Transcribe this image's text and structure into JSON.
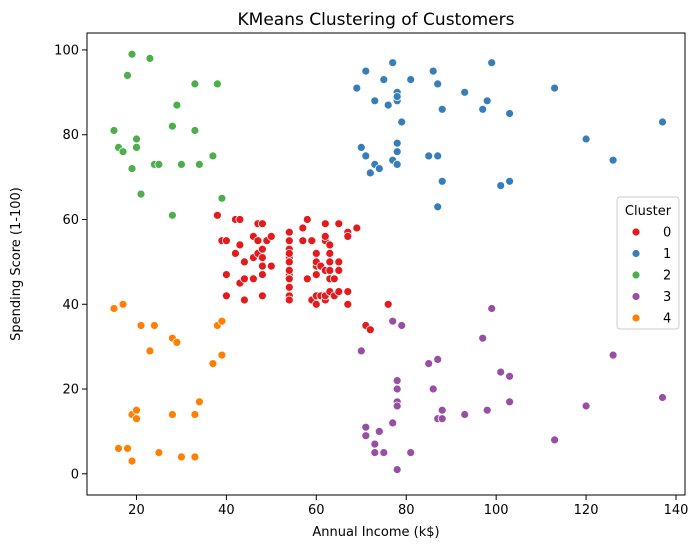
{
  "chart_data": {
    "type": "scatter",
    "title": "KMeans Clustering of Customers",
    "xlabel": "Annual Income (k$)",
    "ylabel": "Spending Score (1-100)",
    "xlim": [
      9,
      142
    ],
    "ylim": [
      -5,
      104
    ],
    "xticks": [
      20,
      40,
      60,
      80,
      100,
      120,
      140
    ],
    "yticks": [
      0,
      20,
      40,
      60,
      80,
      100
    ],
    "grid": false,
    "legend": {
      "title": "Cluster",
      "placement": "center-right"
    },
    "series": [
      {
        "name": "0",
        "color": "#e41a1c",
        "points": [
          [
            38,
            61
          ],
          [
            39,
            55
          ],
          [
            40,
            47
          ],
          [
            40,
            42
          ],
          [
            40,
            55
          ],
          [
            42,
            60
          ],
          [
            42,
            52
          ],
          [
            43,
            60
          ],
          [
            43,
            54
          ],
          [
            43,
            45
          ],
          [
            44,
            50
          ],
          [
            44,
            41
          ],
          [
            44,
            46
          ],
          [
            46,
            51
          ],
          [
            46,
            46
          ],
          [
            46,
            56
          ],
          [
            47,
            52
          ],
          [
            47,
            59
          ],
          [
            47,
            55
          ],
          [
            48,
            59
          ],
          [
            48,
            51
          ],
          [
            48,
            47
          ],
          [
            48,
            42
          ],
          [
            48,
            49
          ],
          [
            48,
            53
          ],
          [
            49,
            55
          ],
          [
            50,
            49
          ],
          [
            50,
            56
          ],
          [
            54,
            47
          ],
          [
            54,
            53
          ],
          [
            54,
            42
          ],
          [
            54,
            51
          ],
          [
            54,
            55
          ],
          [
            54,
            41
          ],
          [
            54,
            44
          ],
          [
            54,
            57
          ],
          [
            54,
            46
          ],
          [
            54,
            52
          ],
          [
            54,
            48
          ],
          [
            54,
            50
          ],
          [
            57,
            58
          ],
          [
            57,
            55
          ],
          [
            58,
            60
          ],
          [
            58,
            46
          ],
          [
            59,
            55
          ],
          [
            59,
            41
          ],
          [
            60,
            49
          ],
          [
            60,
            40
          ],
          [
            60,
            42
          ],
          [
            60,
            52
          ],
          [
            60,
            47
          ],
          [
            60,
            50
          ],
          [
            61,
            42
          ],
          [
            61,
            49
          ],
          [
            62,
            41
          ],
          [
            62,
            48
          ],
          [
            62,
            59
          ],
          [
            62,
            55
          ],
          [
            62,
            56
          ],
          [
            62,
            42
          ],
          [
            63,
            50
          ],
          [
            63,
            46
          ],
          [
            63,
            43
          ],
          [
            63,
            48
          ],
          [
            63,
            52
          ],
          [
            63,
            54
          ],
          [
            64,
            42
          ],
          [
            64,
            46
          ],
          [
            65,
            48
          ],
          [
            65,
            50
          ],
          [
            65,
            43
          ],
          [
            65,
            59
          ],
          [
            67,
            43
          ],
          [
            67,
            57
          ],
          [
            67,
            56
          ],
          [
            67,
            40
          ],
          [
            69,
            58
          ],
          [
            71,
            35
          ],
          [
            72,
            34
          ],
          [
            76,
            40
          ]
        ]
      },
      {
        "name": "1",
        "color": "#377eb8",
        "points": [
          [
            69,
            91
          ],
          [
            70,
            77
          ],
          [
            71,
            95
          ],
          [
            71,
            75
          ],
          [
            72,
            71
          ],
          [
            73,
            88
          ],
          [
            73,
            73
          ],
          [
            74,
            72
          ],
          [
            75,
            93
          ],
          [
            76,
            87
          ],
          [
            77,
            97
          ],
          [
            77,
            74
          ],
          [
            78,
            90
          ],
          [
            78,
            88
          ],
          [
            78,
            89
          ],
          [
            78,
            76
          ],
          [
            78,
            78
          ],
          [
            78,
            73
          ],
          [
            79,
            83
          ],
          [
            81,
            93
          ],
          [
            85,
            75
          ],
          [
            86,
            95
          ],
          [
            87,
            92
          ],
          [
            87,
            75
          ],
          [
            87,
            63
          ],
          [
            88,
            86
          ],
          [
            88,
            69
          ],
          [
            93,
            90
          ],
          [
            97,
            86
          ],
          [
            98,
            88
          ],
          [
            99,
            97
          ],
          [
            101,
            68
          ],
          [
            103,
            85
          ],
          [
            103,
            69
          ],
          [
            113,
            91
          ],
          [
            120,
            79
          ],
          [
            126,
            74
          ],
          [
            137,
            83
          ]
        ]
      },
      {
        "name": "2",
        "color": "#4daf4a",
        "points": [
          [
            15,
            81
          ],
          [
            16,
            77
          ],
          [
            17,
            76
          ],
          [
            18,
            94
          ],
          [
            19,
            72
          ],
          [
            19,
            99
          ],
          [
            20,
            77
          ],
          [
            20,
            79
          ],
          [
            21,
            66
          ],
          [
            23,
            98
          ],
          [
            24,
            73
          ],
          [
            25,
            73
          ],
          [
            28,
            82
          ],
          [
            28,
            61
          ],
          [
            29,
            87
          ],
          [
            30,
            73
          ],
          [
            33,
            92
          ],
          [
            33,
            81
          ],
          [
            34,
            73
          ],
          [
            37,
            75
          ],
          [
            38,
            92
          ],
          [
            39,
            65
          ]
        ]
      },
      {
        "name": "3",
        "color": "#984ea3",
        "points": [
          [
            70,
            29
          ],
          [
            71,
            11
          ],
          [
            71,
            9
          ],
          [
            73,
            5
          ],
          [
            73,
            7
          ],
          [
            74,
            10
          ],
          [
            75,
            5
          ],
          [
            77,
            12
          ],
          [
            77,
            36
          ],
          [
            78,
            22
          ],
          [
            78,
            17
          ],
          [
            78,
            20
          ],
          [
            78,
            16
          ],
          [
            78,
            1
          ],
          [
            79,
            35
          ],
          [
            81,
            5
          ],
          [
            85,
            26
          ],
          [
            86,
            20
          ],
          [
            87,
            27
          ],
          [
            87,
            13
          ],
          [
            88,
            13
          ],
          [
            88,
            15
          ],
          [
            93,
            14
          ],
          [
            97,
            32
          ],
          [
            98,
            15
          ],
          [
            99,
            39
          ],
          [
            101,
            24
          ],
          [
            103,
            17
          ],
          [
            103,
            23
          ],
          [
            113,
            8
          ],
          [
            120,
            16
          ],
          [
            126,
            28
          ],
          [
            137,
            18
          ]
        ]
      },
      {
        "name": "4",
        "color": "#ff7f00",
        "points": [
          [
            15,
            39
          ],
          [
            16,
            6
          ],
          [
            17,
            40
          ],
          [
            18,
            6
          ],
          [
            19,
            3
          ],
          [
            19,
            14
          ],
          [
            20,
            15
          ],
          [
            20,
            13
          ],
          [
            21,
            35
          ],
          [
            23,
            29
          ],
          [
            24,
            35
          ],
          [
            25,
            5
          ],
          [
            28,
            14
          ],
          [
            28,
            32
          ],
          [
            29,
            31
          ],
          [
            30,
            4
          ],
          [
            33,
            4
          ],
          [
            33,
            14
          ],
          [
            34,
            17
          ],
          [
            37,
            26
          ],
          [
            38,
            35
          ],
          [
            39,
            36
          ],
          [
            39,
            28
          ]
        ]
      }
    ]
  }
}
